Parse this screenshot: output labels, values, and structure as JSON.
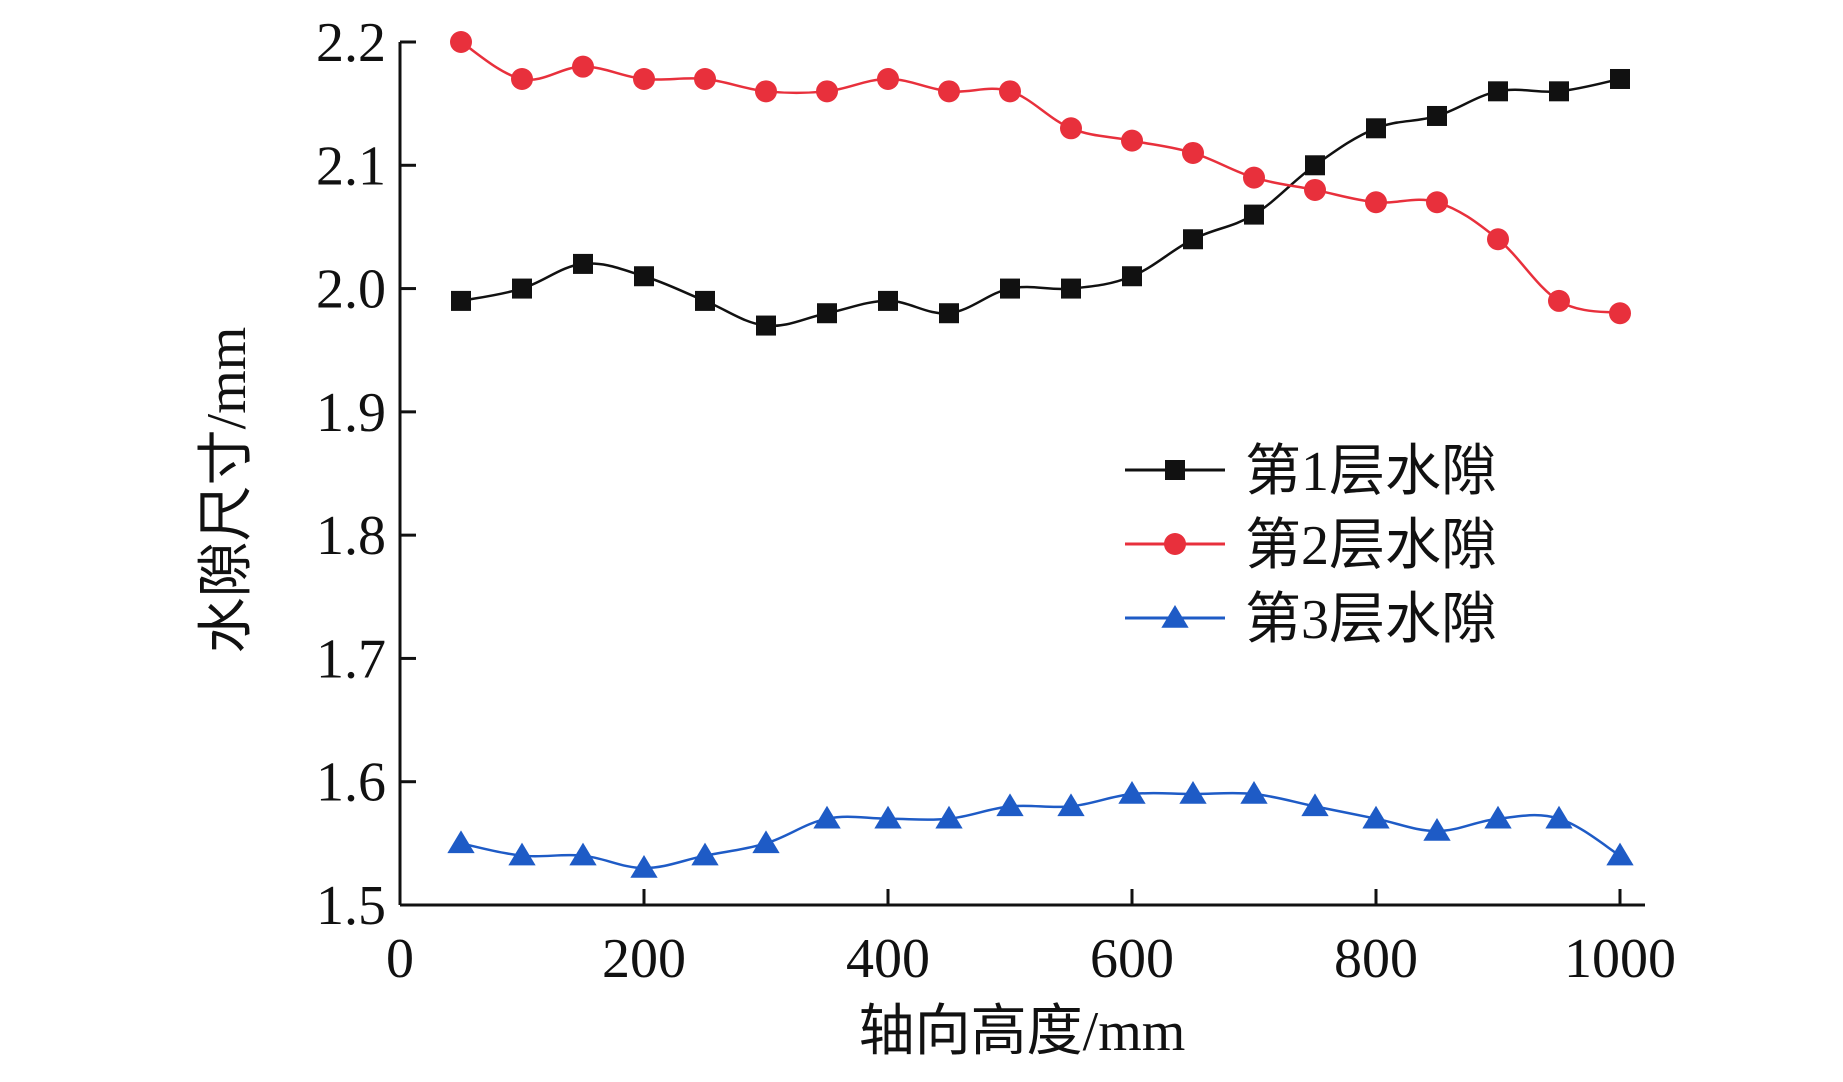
{
  "chart_data": {
    "type": "line",
    "title": "",
    "xlabel": "轴向高度/mm",
    "ylabel": "水隙尺寸/mm",
    "xlim": [
      0,
      1000
    ],
    "ylim": [
      1.5,
      2.2
    ],
    "xticks": [
      0,
      200,
      400,
      600,
      800,
      1000
    ],
    "xtick_labels": [
      "0",
      "200",
      "400",
      "600",
      "800",
      "1000"
    ],
    "yticks": [
      1.5,
      1.6,
      1.7,
      1.8,
      1.9,
      2.0,
      2.1,
      2.2
    ],
    "ytick_labels": [
      "1.5",
      "1.6",
      "1.7",
      "1.8",
      "1.9",
      "2.0",
      "2.1",
      "2.2"
    ],
    "grid": false,
    "legend_position": "right-center",
    "x": [
      50,
      100,
      150,
      200,
      250,
      300,
      350,
      400,
      450,
      500,
      550,
      600,
      650,
      700,
      750,
      800,
      850,
      900,
      950,
      1000
    ],
    "series": [
      {
        "name": "第1层水隙",
        "color": "#111111",
        "marker": "square",
        "values": [
          1.99,
          2.0,
          2.02,
          2.01,
          1.99,
          1.97,
          1.98,
          1.99,
          1.98,
          2.0,
          2.0,
          2.01,
          2.04,
          2.06,
          2.1,
          2.13,
          2.14,
          2.16,
          2.16,
          2.17
        ]
      },
      {
        "name": "第2层水隙",
        "color": "#e8303c",
        "marker": "circle",
        "values": [
          2.2,
          2.17,
          2.18,
          2.17,
          2.17,
          2.16,
          2.16,
          2.17,
          2.16,
          2.16,
          2.13,
          2.12,
          2.11,
          2.09,
          2.08,
          2.07,
          2.07,
          2.04,
          1.99,
          1.98
        ]
      },
      {
        "name": "第3层水隙",
        "color": "#1e5bc6",
        "marker": "triangle",
        "values": [
          1.55,
          1.54,
          1.54,
          1.53,
          1.54,
          1.55,
          1.57,
          1.57,
          1.57,
          1.58,
          1.58,
          1.59,
          1.59,
          1.59,
          1.58,
          1.57,
          1.56,
          1.57,
          1.57,
          1.54
        ]
      }
    ]
  }
}
